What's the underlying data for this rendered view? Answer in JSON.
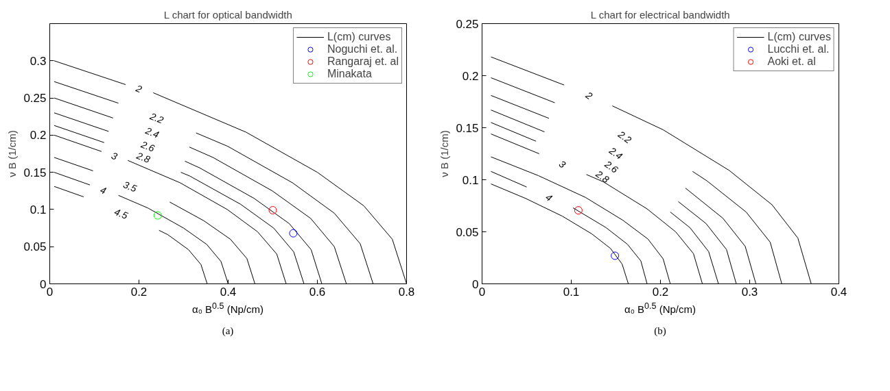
{
  "chart_data": [
    {
      "type": "line",
      "title": "L chart for optical bandwidth",
      "xlabel": "α₀ B$^{0.5}$ (Np/cm)",
      "ylabel": "ν B (1/cm)",
      "xlim": [
        0,
        0.8
      ],
      "ylim": [
        0,
        0.35
      ],
      "xticks": [
        0,
        0.2,
        0.4,
        0.6,
        0.8
      ],
      "yticks": [
        0,
        0.05,
        0.1,
        0.15,
        0.2,
        0.25,
        0.3
      ],
      "grid": false,
      "legend": "top right",
      "series": [
        {
          "name": "L(cm) curves",
          "type": "line",
          "color": "#000000",
          "marker": "none",
          "x": [
            0.01,
            0.17,
            0.2,
            0.232,
            0.44,
            0.6,
            0.704,
            0.768,
            0.8
          ],
          "values": [
            0.3,
            0.268,
            null,
            0.257,
            0.204,
            0.15,
            0.105,
            0.06,
            0
          ]
        },
        {
          "type": "line",
          "color": "#000000",
          "marker": "none",
          "x": [
            0.01,
            0.154,
            0.24,
            0.328,
            0.399,
            0.544,
            0.638,
            0.696,
            0.725
          ],
          "values": [
            0.272,
            0.243,
            null,
            0.203,
            0.185,
            0.136,
            0.095,
            0.054,
            0
          ]
        },
        {
          "type": "line",
          "color": "#000000",
          "marker": "none",
          "x": [
            0.01,
            0.142,
            0.23,
            0.313,
            0.366,
            0.499,
            0.585,
            0.638,
            0.665
          ],
          "values": [
            0.25,
            0.223,
            null,
            0.184,
            0.17,
            0.125,
            0.088,
            0.05,
            0
          ]
        },
        {
          "type": "line",
          "color": "#000000",
          "marker": "none",
          "x": [
            0.01,
            0.132,
            0.22,
            0.303,
            0.336,
            0.458,
            0.537,
            0.586,
            0.61
          ],
          "values": [
            0.23,
            0.205,
            null,
            0.165,
            0.156,
            0.115,
            0.081,
            0.046,
            0
          ]
        },
        {
          "type": "line",
          "color": "#000000",
          "marker": "none",
          "x": [
            0.01,
            0.122,
            0.21,
            0.294,
            0.314,
            0.428,
            0.502,
            0.547,
            0.57
          ],
          "values": [
            0.213,
            0.19,
            null,
            0.15,
            0.145,
            0.107,
            0.075,
            0.043,
            0
          ]
        },
        {
          "type": "line",
          "color": "#000000",
          "marker": "none",
          "x": [
            0.01,
            0.116,
            0.145,
            0.175,
            0.292,
            0.398,
            0.466,
            0.509,
            0.53
          ],
          "values": [
            0.2,
            0.178,
            null,
            0.166,
            0.136,
            0.1,
            0.07,
            0.04,
            0
          ]
        },
        {
          "type": "line",
          "color": "#000000",
          "marker": "none",
          "x": [
            0.01,
            0.097,
            0.18,
            0.269,
            0.345,
            0.405,
            0.442,
            0.46
          ],
          "values": [
            0.17,
            0.152,
            null,
            0.11,
            0.085,
            0.06,
            0.034,
            0
          ]
        },
        {
          "type": "line",
          "color": "#000000",
          "marker": "none",
          "x": [
            0.01,
            0.09,
            0.12,
            0.154,
            0.22,
            0.3,
            0.352,
            0.384,
            0.4
          ],
          "values": [
            0.15,
            0.133,
            null,
            0.119,
            0.102,
            0.075,
            0.053,
            0.03,
            0
          ]
        },
        {
          "type": "line",
          "color": "#000000",
          "marker": "none",
          "x": [
            0.01,
            0.076,
            0.16,
            0.245,
            0.265,
            0.311,
            0.339,
            0.353
          ],
          "values": [
            0.131,
            0.117,
            null,
            0.072,
            0.066,
            0.046,
            0.026,
            0
          ]
        },
        {
          "name": "Noguchi et. al.",
          "type": "scatter",
          "color": "#0000ff",
          "marker": "circle",
          "x": [
            0.546
          ],
          "values": [
            0.068
          ]
        },
        {
          "name": "Rangaraj et. al",
          "type": "scatter",
          "color": "#ff0000",
          "marker": "circle",
          "x": [
            0.5
          ],
          "values": [
            0.099
          ]
        },
        {
          "name": "Minakata",
          "type": "scatter",
          "color": "#00ff00",
          "marker": "circle",
          "x": [
            0.242
          ],
          "values": [
            0.092
          ]
        }
      ],
      "annotations": [
        "2",
        "2.2",
        "2.4",
        "2.6",
        "2.8",
        "3",
        "3.5",
        "4",
        "4.5",
        "(a)"
      ]
    },
    {
      "type": "line",
      "title": "L chart for electrical bandwidth",
      "xlabel": "α₀ B$^{0.5}$ (Np/cm)",
      "ylabel": "ν B (1/cm)",
      "xlim": [
        0,
        0.4
      ],
      "ylim": [
        0,
        0.25
      ],
      "xticks": [
        0,
        0.1,
        0.2,
        0.3,
        0.4
      ],
      "yticks": [
        0,
        0.05,
        0.1,
        0.15,
        0.2,
        0.25
      ],
      "grid": false,
      "legend": "top right",
      "series": [
        {
          "name": "L(cm) curves",
          "type": "line",
          "color": "#000000",
          "marker": "none",
          "x": [
            0.01,
            0.092,
            0.12,
            0.146,
            0.203,
            0.277,
            0.325,
            0.354,
            0.369
          ],
          "values": [
            0.218,
            0.191,
            null,
            0.171,
            0.148,
            0.109,
            0.076,
            0.044,
            0
          ]
        },
        {
          "type": "line",
          "color": "#000000",
          "marker": "none",
          "x": [
            0.01,
            0.0815,
            0.16,
            0.236,
            0.252,
            0.296,
            0.323,
            0.336
          ],
          "values": [
            0.198,
            0.174,
            null,
            0.108,
            0.099,
            0.069,
            0.04,
            0
          ]
        },
        {
          "type": "line",
          "color": "#000000",
          "marker": "none",
          "x": [
            0.01,
            0.075,
            0.15,
            0.228,
            0.27,
            0.295,
            0.307
          ],
          "values": [
            0.181,
            0.159,
            null,
            0.092,
            0.063,
            0.036,
            0
          ]
        },
        {
          "type": "line",
          "color": "#000000",
          "marker": "none",
          "x": [
            0.01,
            0.07,
            0.145,
            0.22,
            0.251,
            0.274,
            0.285
          ],
          "values": [
            0.167,
            0.146,
            null,
            0.079,
            0.058,
            0.033,
            0
          ]
        },
        {
          "type": "line",
          "color": "#000000",
          "marker": "none",
          "x": [
            0.01,
            0.0605,
            0.135,
            0.211,
            0.233,
            0.254,
            0.265
          ],
          "values": [
            0.155,
            0.137,
            null,
            0.069,
            0.054,
            0.031,
            0
          ]
        },
        {
          "type": "line",
          "color": "#000000",
          "marker": "none",
          "x": [
            0.01,
            0.064,
            0.09,
            0.117,
            0.136,
            0.185,
            0.217,
            0.237,
            0.247
          ],
          "values": [
            0.144,
            0.125,
            null,
            0.105,
            0.098,
            0.072,
            0.05,
            0.029,
            0
          ]
        },
        {
          "type": "line",
          "color": "#000000",
          "marker": "none",
          "x": [
            0.01,
            0.063,
            0.116,
            0.158,
            0.186,
            0.203,
            0.211
          ],
          "values": [
            0.122,
            0.104,
            0.083,
            0.061,
            0.043,
            0.024,
            0
          ]
        },
        {
          "type": "line",
          "color": "#000000",
          "marker": "none",
          "x": [
            0.01,
            0.05,
            0.075,
            0.102,
            0.139,
            0.163,
            0.178,
            0.185
          ],
          "values": [
            0.108,
            0.093,
            null,
            0.073,
            0.054,
            0.038,
            0.022,
            0
          ]
        },
        {
          "type": "line",
          "color": "#000000",
          "marker": "none",
          "x": [
            0.01,
            0.049,
            0.09,
            0.123,
            0.144,
            0.157,
            0.164
          ],
          "values": [
            0.096,
            0.082,
            0.065,
            0.048,
            0.034,
            0.019,
            0
          ]
        },
        {
          "name": "Lucchi et. al.",
          "type": "scatter",
          "color": "#0000ff",
          "marker": "circle",
          "x": [
            0.149
          ],
          "values": [
            0.027
          ]
        },
        {
          "name": "Aoki et. al",
          "type": "scatter",
          "color": "#ff0000",
          "marker": "circle",
          "x": [
            0.108
          ],
          "values": [
            0.0706
          ]
        }
      ],
      "annotations": [
        "2",
        "2.2",
        "2.4",
        "2.6",
        "2.8",
        "3",
        "4",
        "(b)"
      ]
    }
  ]
}
